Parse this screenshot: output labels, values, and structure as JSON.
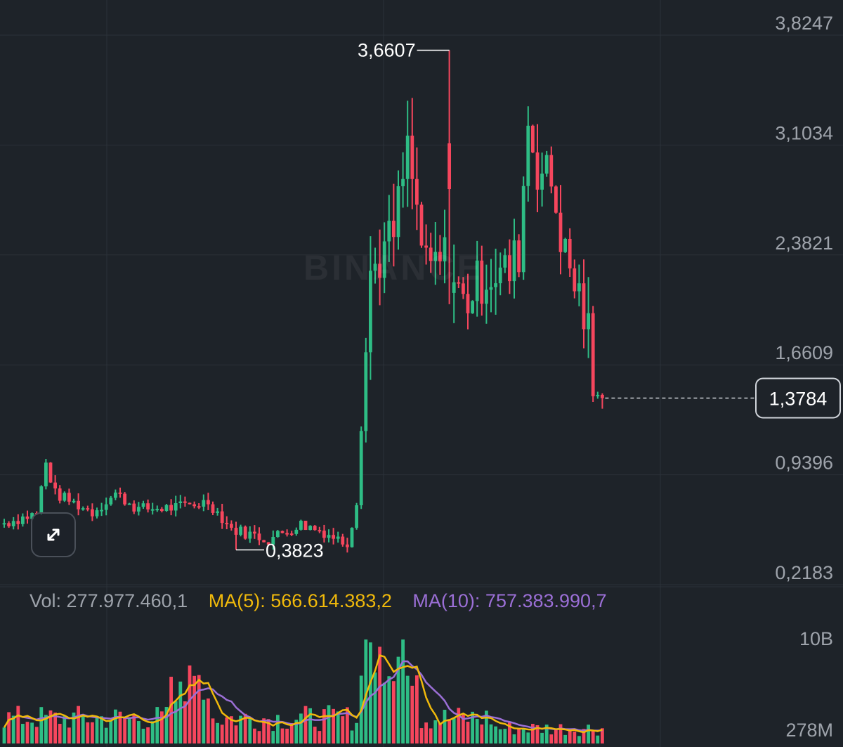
{
  "colors": {
    "background": "#1e2329",
    "grid": "#2b3139",
    "up": "#2ebd85",
    "down": "#f6465d",
    "axis_text": "#9ea3ab",
    "ma5": "#f0b90b",
    "ma10": "#9b6fd6",
    "label": "#ffffff"
  },
  "watermark": "BINANCE",
  "expand_icon": "expand-arrows-icon",
  "volume_legend": {
    "vol": "Vol: 277.977.460,1",
    "ma5": "MA(5): 566.614.383,2",
    "ma10": "MA(10): 757.383.990,7"
  },
  "chart_data": [
    {
      "type": "candlestick",
      "y_ticks": [
        "3,8247",
        "3,1034",
        "2,3821",
        "1,6609",
        "0,9396",
        "0,2183"
      ],
      "y_tick_values": [
        3.8247,
        3.1034,
        2.3821,
        1.6609,
        0.9396,
        0.2183
      ],
      "high_label": "3,6607",
      "low_label": "0,3823",
      "current_price_label": "1,3784",
      "current_price": 1.3784,
      "highest_high": 3.6607,
      "lowest_low": 0.3823,
      "grid": true
    },
    {
      "type": "bar",
      "series": [
        {
          "name": "Vol"
        },
        {
          "name": "MA(5)"
        },
        {
          "name": "MA(10)"
        }
      ],
      "y_ticks": [
        "10B",
        "278M"
      ],
      "grid": true
    }
  ]
}
